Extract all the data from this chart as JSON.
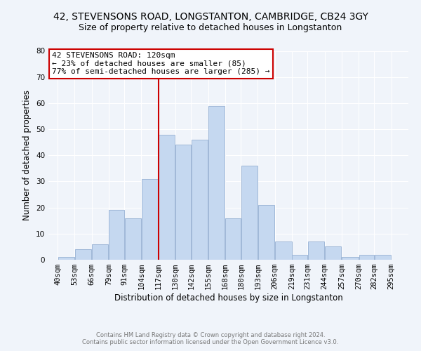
{
  "title": "42, STEVENSONS ROAD, LONGSTANTON, CAMBRIDGE, CB24 3GY",
  "subtitle": "Size of property relative to detached houses in Longstanton",
  "xlabel": "Distribution of detached houses by size in Longstanton",
  "ylabel": "Number of detached properties",
  "bar_left_edges": [
    40,
    53,
    66,
    79,
    91,
    104,
    117,
    130,
    142,
    155,
    168,
    180,
    193,
    206,
    219,
    231,
    244,
    257,
    270,
    282
  ],
  "bar_heights": [
    1,
    4,
    6,
    19,
    16,
    31,
    48,
    44,
    46,
    59,
    16,
    36,
    21,
    7,
    2,
    7,
    5,
    1,
    2,
    2
  ],
  "bar_widths": [
    13,
    13,
    13,
    12,
    13,
    13,
    13,
    12,
    13,
    13,
    12,
    13,
    13,
    13,
    12,
    13,
    13,
    13,
    12,
    13
  ],
  "bar_color": "#c5d8f0",
  "bar_edge_color": "#a0b8d8",
  "vline_x": 117,
  "vline_color": "#cc0000",
  "ylim": [
    0,
    80
  ],
  "yticks": [
    0,
    10,
    20,
    30,
    40,
    50,
    60,
    70,
    80
  ],
  "xtick_labels": [
    "40sqm",
    "53sqm",
    "66sqm",
    "79sqm",
    "91sqm",
    "104sqm",
    "117sqm",
    "130sqm",
    "142sqm",
    "155sqm",
    "168sqm",
    "180sqm",
    "193sqm",
    "206sqm",
    "219sqm",
    "231sqm",
    "244sqm",
    "257sqm",
    "270sqm",
    "282sqm",
    "295sqm"
  ],
  "xtick_positions": [
    40,
    53,
    66,
    79,
    91,
    104,
    117,
    130,
    142,
    155,
    168,
    180,
    193,
    206,
    219,
    231,
    244,
    257,
    270,
    282,
    295
  ],
  "annotation_box_text": "42 STEVENSONS ROAD: 120sqm\n← 23% of detached houses are smaller (85)\n77% of semi-detached houses are larger (285) →",
  "bg_color": "#f0f4fa",
  "grid_color": "#ffffff",
  "footer_line1": "Contains HM Land Registry data © Crown copyright and database right 2024.",
  "footer_line2": "Contains public sector information licensed under the Open Government Licence v3.0.",
  "title_fontsize": 10,
  "subtitle_fontsize": 9,
  "axis_label_fontsize": 8.5,
  "tick_fontsize": 7.5,
  "annot_fontsize": 8,
  "footer_fontsize": 6
}
